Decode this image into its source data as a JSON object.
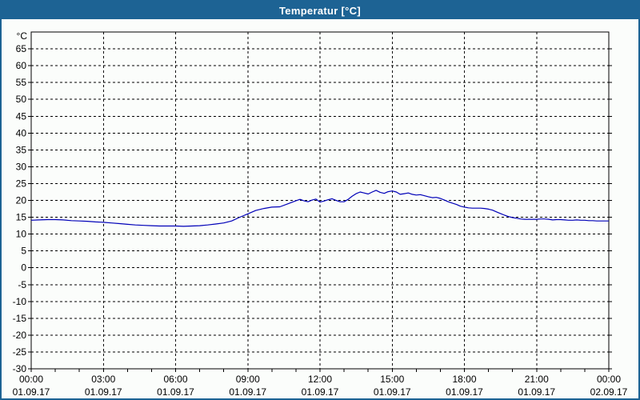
{
  "window": {
    "title": "Temperatur [°C]",
    "titlebar_color": "#1d6394",
    "border_color": "#1d6394",
    "background_color": "#fbfdfb"
  },
  "chart_data": {
    "type": "line",
    "title": "Temperatur [°C]",
    "grid": {
      "style": "dashed",
      "color": "#000000"
    },
    "x_axis": {
      "min_hours": 0,
      "max_hours": 24,
      "minor_tick_interval_hours": 1,
      "major_tick_interval_hours": 3,
      "major_ticks": [
        {
          "time": "00:00",
          "date": "01.09.17"
        },
        {
          "time": "03:00",
          "date": "01.09.17"
        },
        {
          "time": "06:00",
          "date": "01.09.17"
        },
        {
          "time": "09:00",
          "date": "01.09.17"
        },
        {
          "time": "12:00",
          "date": "01.09.17"
        },
        {
          "time": "15:00",
          "date": "01.09.17"
        },
        {
          "time": "18:00",
          "date": "01.09.17"
        },
        {
          "time": "21:00",
          "date": "01.09.17"
        },
        {
          "time": "00:00",
          "date": "02.09.17"
        }
      ]
    },
    "y_axis": {
      "unit_label": "°C",
      "min": -30,
      "max": 70,
      "tick_interval": 5,
      "tick_labels": [
        65,
        60,
        55,
        50,
        45,
        40,
        35,
        30,
        25,
        20,
        15,
        10,
        5,
        0,
        -5,
        -10,
        -15,
        -20,
        -25,
        -30
      ]
    },
    "series": [
      {
        "name": "Temperatur",
        "color": "#0000b8",
        "points_hours_celsius": [
          [
            0,
            14.1
          ],
          [
            0.33,
            14.2
          ],
          [
            0.67,
            14.3
          ],
          [
            1,
            14.3
          ],
          [
            1.33,
            14.2
          ],
          [
            1.67,
            14.0
          ],
          [
            2,
            13.9
          ],
          [
            2.33,
            13.8
          ],
          [
            2.67,
            13.6
          ],
          [
            3,
            13.5
          ],
          [
            3.33,
            13.3
          ],
          [
            3.67,
            13.1
          ],
          [
            4,
            12.9
          ],
          [
            4.33,
            12.7
          ],
          [
            4.67,
            12.6
          ],
          [
            5,
            12.5
          ],
          [
            5.33,
            12.4
          ],
          [
            5.67,
            12.4
          ],
          [
            6,
            12.4
          ],
          [
            6.33,
            12.3
          ],
          [
            6.67,
            12.4
          ],
          [
            7,
            12.5
          ],
          [
            7.33,
            12.7
          ],
          [
            7.67,
            13.0
          ],
          [
            8,
            13.3
          ],
          [
            8.33,
            13.9
          ],
          [
            8.67,
            15.0
          ],
          [
            9,
            16.0
          ],
          [
            9.33,
            17.0
          ],
          [
            9.67,
            17.6
          ],
          [
            10,
            18.0
          ],
          [
            10.33,
            18.1
          ],
          [
            10.67,
            19.0
          ],
          [
            11,
            19.9
          ],
          [
            11.17,
            20.3
          ],
          [
            11.33,
            19.9
          ],
          [
            11.5,
            19.6
          ],
          [
            11.67,
            20.1
          ],
          [
            11.83,
            20.4
          ],
          [
            12,
            19.5
          ],
          [
            12.17,
            19.8
          ],
          [
            12.33,
            20.2
          ],
          [
            12.5,
            20.5
          ],
          [
            12.67,
            20.0
          ],
          [
            12.83,
            19.6
          ],
          [
            13,
            19.6
          ],
          [
            13.17,
            20.3
          ],
          [
            13.33,
            21.2
          ],
          [
            13.5,
            22.0
          ],
          [
            13.67,
            22.5
          ],
          [
            13.83,
            22.2
          ],
          [
            14,
            21.9
          ],
          [
            14.17,
            22.5
          ],
          [
            14.33,
            23.0
          ],
          [
            14.5,
            22.4
          ],
          [
            14.67,
            22.1
          ],
          [
            14.83,
            22.6
          ],
          [
            15,
            22.8
          ],
          [
            15.17,
            22.5
          ],
          [
            15.33,
            21.8
          ],
          [
            15.5,
            22.0
          ],
          [
            15.67,
            22.2
          ],
          [
            15.83,
            21.8
          ],
          [
            16,
            21.6
          ],
          [
            16.17,
            21.7
          ],
          [
            16.33,
            21.4
          ],
          [
            16.5,
            21.1
          ],
          [
            16.67,
            20.8
          ],
          [
            16.83,
            20.9
          ],
          [
            17,
            20.6
          ],
          [
            17.17,
            20.1
          ],
          [
            17.33,
            19.6
          ],
          [
            17.5,
            19.2
          ],
          [
            17.67,
            18.8
          ],
          [
            17.83,
            18.3
          ],
          [
            18,
            18.0
          ],
          [
            18.17,
            17.8
          ],
          [
            18.33,
            17.7
          ],
          [
            18.5,
            17.7
          ],
          [
            18.67,
            17.7
          ],
          [
            18.83,
            17.6
          ],
          [
            19,
            17.4
          ],
          [
            19.17,
            17.1
          ],
          [
            19.33,
            16.6
          ],
          [
            19.5,
            16.1
          ],
          [
            19.67,
            15.6
          ],
          [
            19.83,
            15.2
          ],
          [
            20,
            14.9
          ],
          [
            20.17,
            14.7
          ],
          [
            20.33,
            14.5
          ],
          [
            20.5,
            14.4
          ],
          [
            20.67,
            14.4
          ],
          [
            20.83,
            14.4
          ],
          [
            21,
            14.4
          ],
          [
            21.17,
            14.5
          ],
          [
            21.33,
            14.5
          ],
          [
            21.5,
            14.4
          ],
          [
            21.67,
            14.2
          ],
          [
            21.83,
            14.3
          ],
          [
            22,
            14.3
          ],
          [
            22.17,
            14.2
          ],
          [
            22.33,
            14.1
          ],
          [
            22.5,
            14.1
          ],
          [
            22.67,
            14.2
          ],
          [
            22.83,
            14.1
          ],
          [
            23,
            14.1
          ],
          [
            23.17,
            14.0
          ],
          [
            23.33,
            14.0
          ],
          [
            23.5,
            13.9
          ],
          [
            23.67,
            13.9
          ],
          [
            23.83,
            13.9
          ],
          [
            24,
            13.9
          ]
        ]
      }
    ]
  }
}
